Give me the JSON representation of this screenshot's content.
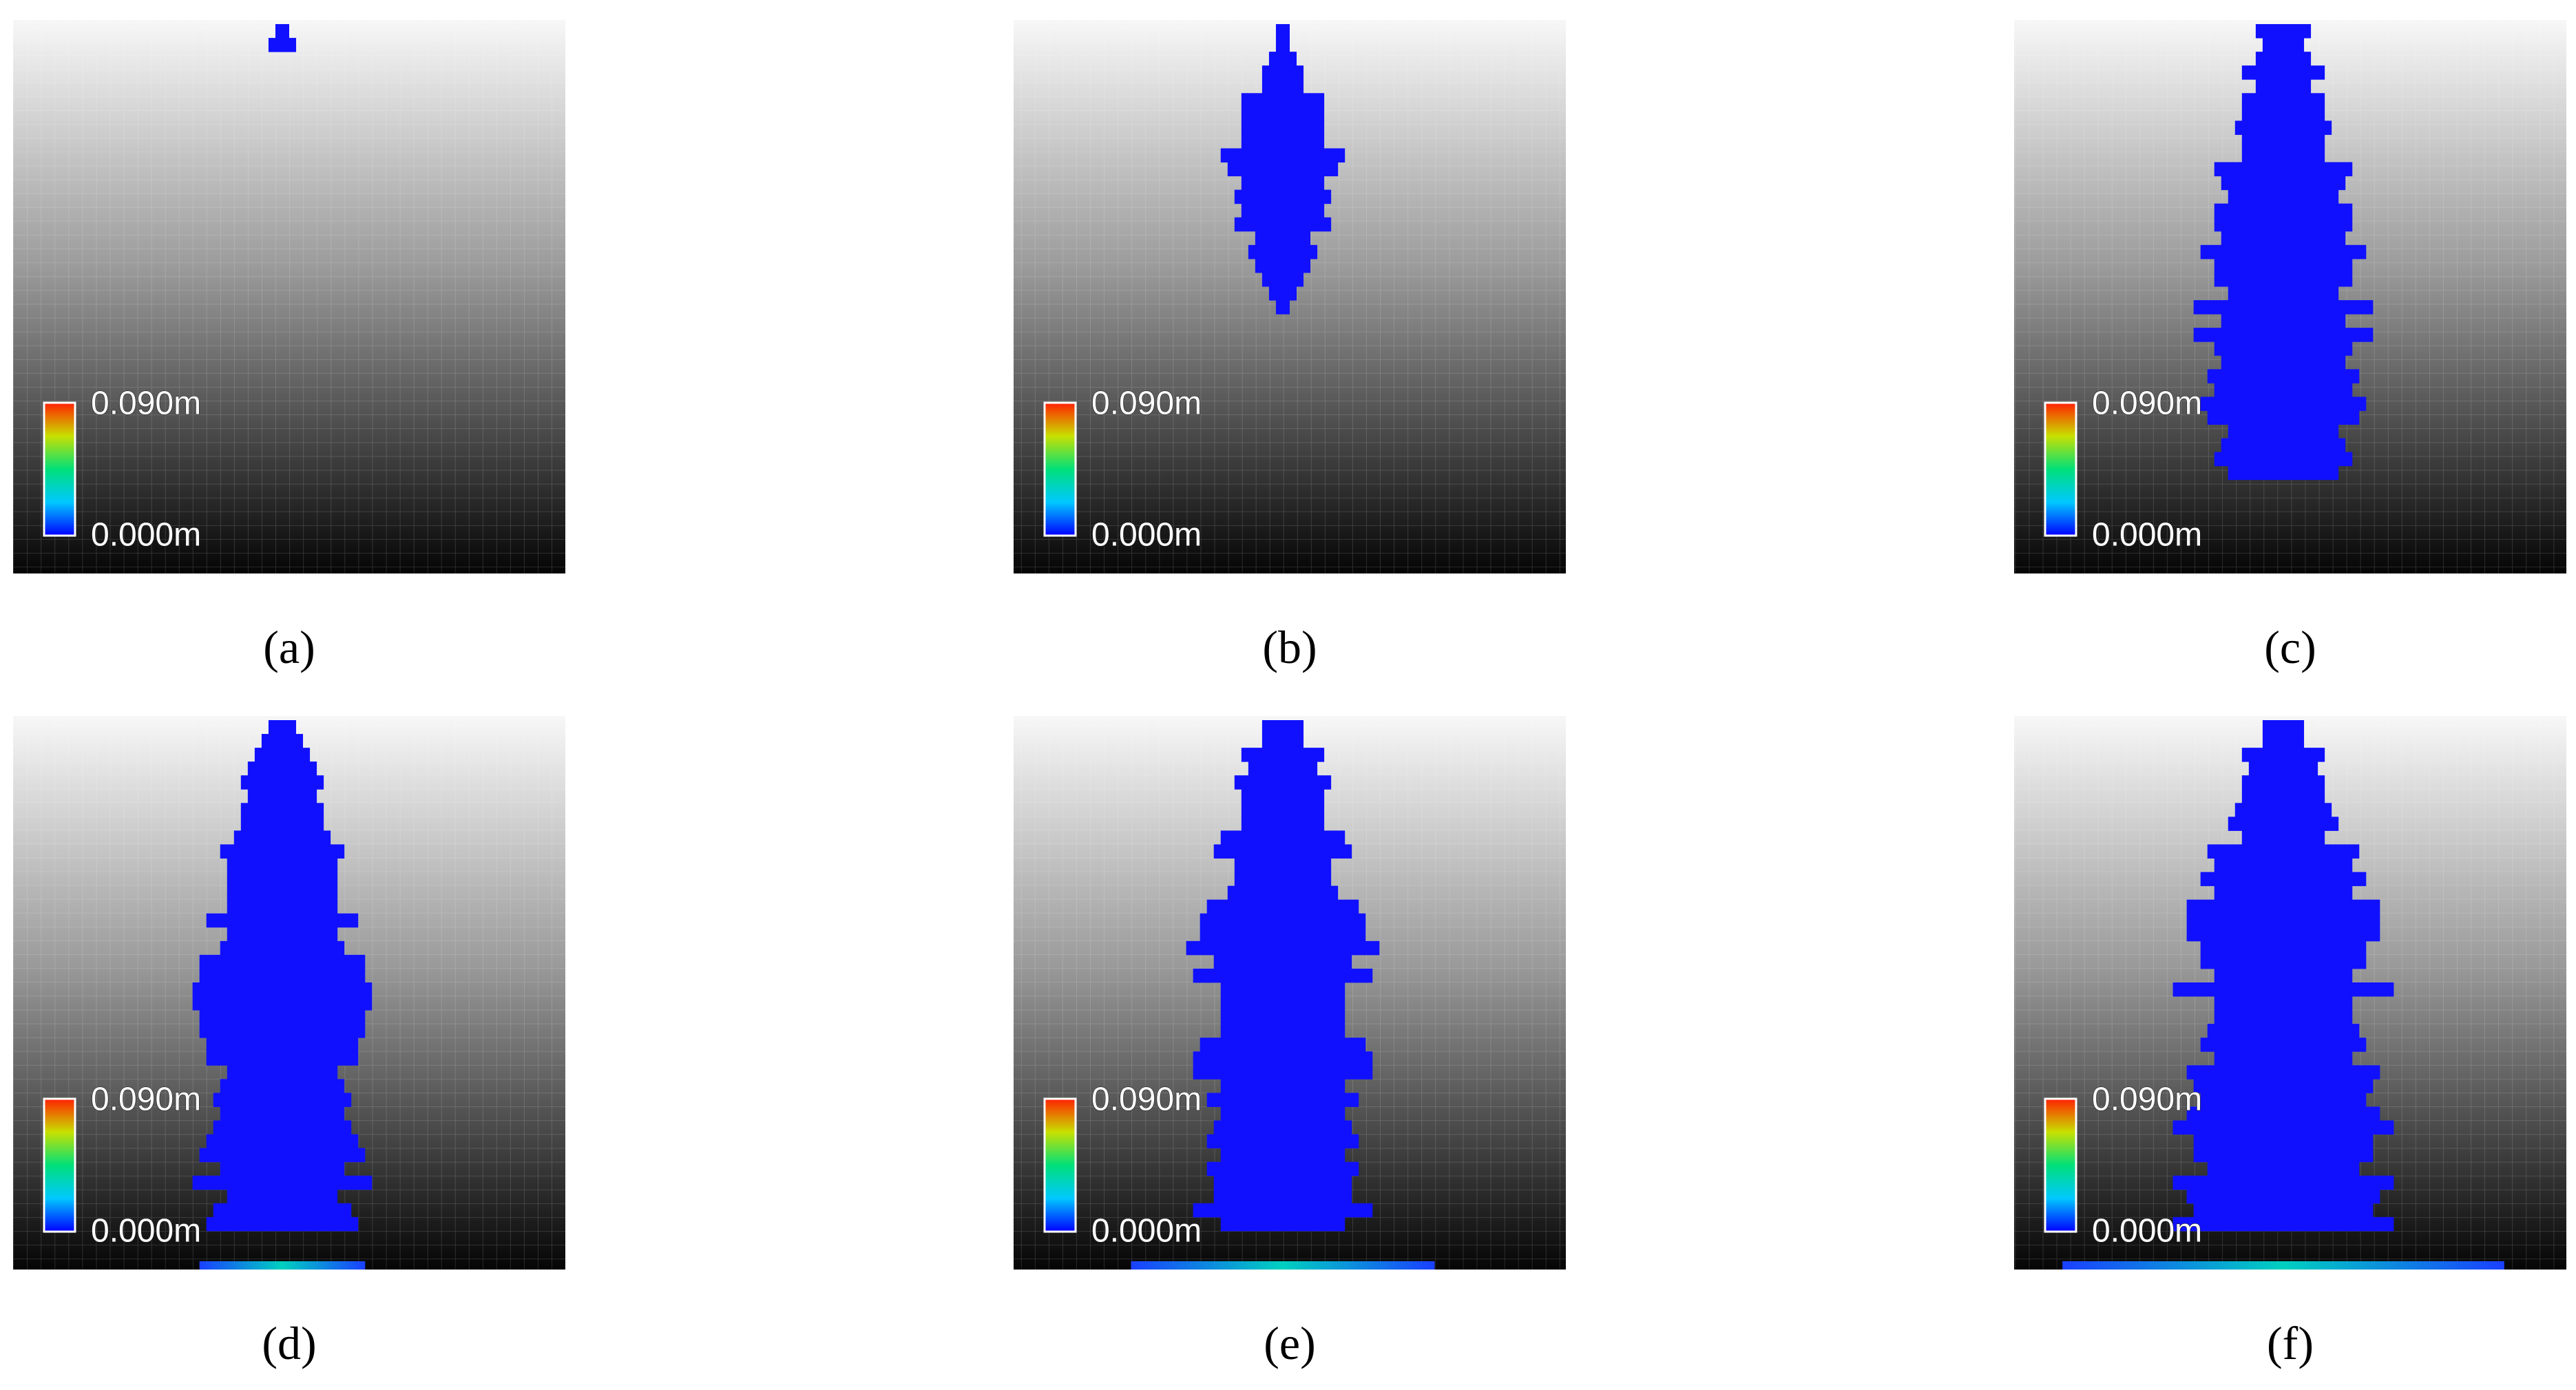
{
  "panels": [
    {
      "label": "(a)",
      "colorbar_max": "0.090m",
      "colorbar_min": "0.000m"
    },
    {
      "label": "(b)",
      "colorbar_max": "0.090m",
      "colorbar_min": "0.000m"
    },
    {
      "label": "(c)",
      "colorbar_max": "0.090m",
      "colorbar_min": "0.000m"
    },
    {
      "label": "(d)",
      "colorbar_max": "0.090m",
      "colorbar_min": "0.000m"
    },
    {
      "label": "(e)",
      "colorbar_max": "0.090m",
      "colorbar_min": "0.000m"
    },
    {
      "label": "(f)",
      "colorbar_max": "0.090m",
      "colorbar_min": "0.000m"
    }
  ]
}
